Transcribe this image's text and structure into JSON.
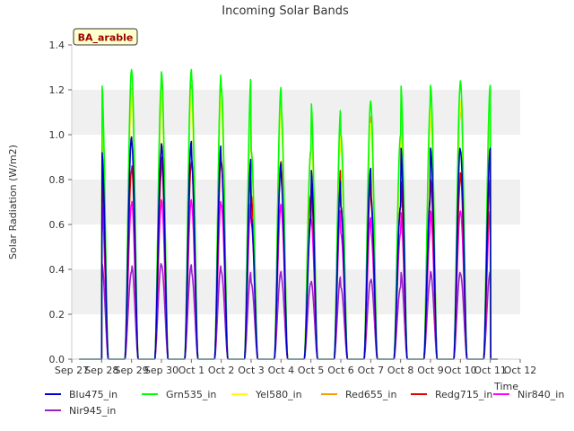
{
  "chart_data": {
    "type": "line",
    "title": "Incoming Solar Bands",
    "ylabel": "Solar Radiation (W/m2)",
    "xlabel": "Time",
    "annotation": "BA_arable",
    "ylim": [
      0,
      1.4
    ],
    "yticks": [
      0.0,
      0.2,
      0.4,
      0.6,
      0.8,
      1.0,
      1.2,
      1.4
    ],
    "ytick_labels": [
      "0.0",
      "0.2",
      "0.4",
      "0.6",
      "0.8",
      "1.0",
      "1.2",
      "1.4"
    ],
    "xticks": [
      "Sep 27",
      "Sep 28",
      "Sep 29",
      "Sep 30",
      "Oct 1",
      "Oct 2",
      "Oct 3",
      "Oct 4",
      "Oct 5",
      "Oct 6",
      "Oct 7",
      "Oct 8",
      "Oct 9",
      "Oct 10",
      "Oct 11",
      "Oct 12"
    ],
    "xlim": [
      "Sep 27",
      "Oct 12"
    ],
    "grid": "horizontal bands",
    "legend_position": "bottom",
    "day_peaks": [
      "Sep 28",
      "Sep 29",
      "Sep 30",
      "Oct 1",
      "Oct 2",
      "Oct 3",
      "Oct 4",
      "Oct 5",
      "Oct 6",
      "Oct 7",
      "Oct 8",
      "Oct 9",
      "Oct 10",
      "Oct 11"
    ],
    "series": [
      {
        "name": "Blu475_in",
        "color": "#0000cc",
        "values": [
          0.99,
          0.93,
          0.97,
          0.96,
          0.9,
          0.87,
          0.63,
          0.8,
          0.85,
          0.68,
          0.73,
          0.95,
          0.94,
          0.93
        ]
      },
      {
        "name": "Grn535_in",
        "color": "#00ff00",
        "values": [
          1.29,
          1.23,
          1.29,
          1.28,
          1.26,
          1.21,
          0.93,
          1.12,
          1.15,
          1.0,
          1.14,
          1.23,
          1.22,
          1.24
        ]
      },
      {
        "name": "Yel580_in",
        "color": "#ffff00",
        "values": [
          1.2,
          1.15,
          1.2,
          1.2,
          1.17,
          1.13,
          0.92,
          1.06,
          1.05,
          0.92,
          1.06,
          1.13,
          1.13,
          1.15
        ]
      },
      {
        "name": "Red655_in",
        "color": "#ff9900",
        "values": [
          1.19,
          1.13,
          1.22,
          1.22,
          1.2,
          1.17,
          0.93,
          1.08,
          1.08,
          0.93,
          1.05,
          1.11,
          1.12,
          1.14
        ]
      },
      {
        "name": "Redg715_in",
        "color": "#dd0000",
        "values": [
          0.84,
          0.83,
          0.87,
          0.9,
          0.89,
          0.88,
          0.73,
          0.85,
          0.78,
          0.68,
          0.71,
          0.8,
          0.8,
          0.83
        ]
      },
      {
        "name": "Nir840_in",
        "color": "#ff00ff",
        "values": [
          0.69,
          0.69,
          0.71,
          0.71,
          0.7,
          0.69,
          0.61,
          0.67,
          0.63,
          0.56,
          0.57,
          0.66,
          0.66,
          0.66
        ]
      },
      {
        "name": "Nir945_in",
        "color": "#9922cc",
        "values": [
          0.39,
          0.43,
          0.42,
          0.42,
          0.39,
          0.39,
          0.34,
          0.37,
          0.35,
          0.32,
          0.36,
          0.39,
          0.39,
          0.38
        ]
      }
    ]
  }
}
